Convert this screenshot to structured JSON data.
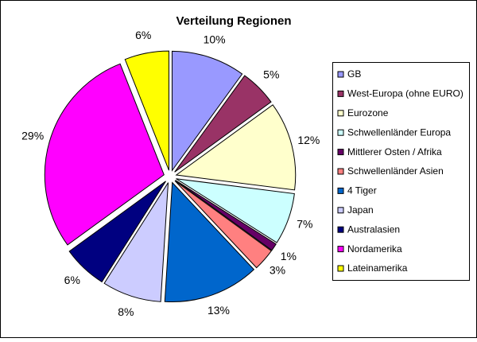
{
  "chart_data": {
    "type": "pie",
    "title": "Verteilung Regionen",
    "categories": [
      "GB",
      "West-Europa (ohne EURO)",
      "Eurozone",
      "Schwellenländer Europa",
      "Mittlerer Osten / Afrika",
      "Schwellenländer Asien",
      "4 Tiger",
      "Japan",
      "Australasien",
      "Nordamerika",
      "Lateinamerika"
    ],
    "values": [
      10,
      5,
      12,
      7,
      1,
      3,
      13,
      8,
      6,
      29,
      6
    ],
    "value_labels": [
      "10%",
      "5%",
      "12%",
      "7%",
      "1%",
      "3%",
      "13%",
      "8%",
      "6%",
      "29%",
      "6%"
    ],
    "colors": [
      "#9999ff",
      "#993366",
      "#ffffcc",
      "#ccffff",
      "#660066",
      "#ff8080",
      "#0066cc",
      "#ccccff",
      "#000080",
      "#ff00ff",
      "#ffff00"
    ],
    "legend": "right"
  }
}
